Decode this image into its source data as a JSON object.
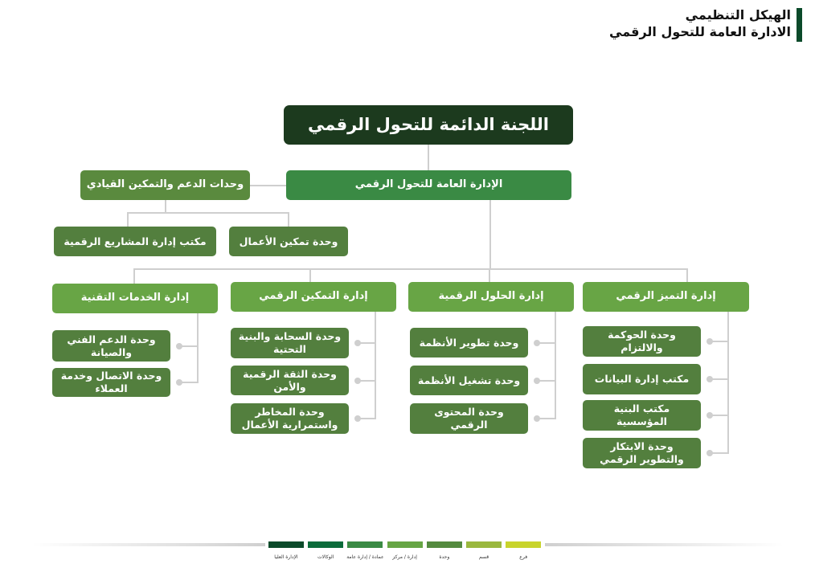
{
  "header": {
    "title_line1": "الهيكل التنظيمي",
    "title_line2": "الادارة العامة للتحول الرقمي"
  },
  "chart": {
    "top": "اللجنة الدائمة للتحول الرقمي",
    "general": "الإدارة العامة للتحول الرقمي",
    "support": {
      "label": "وحدات الدعم والتمكين القيادي",
      "units": [
        "مكتب إدارة المشاريع الرقمية",
        "وحدة تمكين الأعمال"
      ]
    },
    "departments": [
      {
        "label": "إدارة الخدمات التقنية",
        "units": [
          "وحدة الدعم الفني والصيانة",
          "وحدة الاتصال وخدمة العملاء"
        ]
      },
      {
        "label": "إدارة التمكين الرقمي",
        "units": [
          "وحدة السحابة والبنية التحتية",
          "وحدة الثقة الرقمية والأمن",
          "وحدة المخاطر واستمرارية الأعمال"
        ]
      },
      {
        "label": "إدارة الحلول الرقمية",
        "units": [
          "وحدة تطوير الأنظمة",
          "وحدة تشغيل الأنظمة",
          "وحدة المحتوى الرقمي"
        ]
      },
      {
        "label": "إدارة التميز الرقمي",
        "units": [
          "وحدة الحوكمة والالتزام",
          "مكتب إدارة البيانات",
          "مكتب البنية المؤسسية",
          "وحدة الابتكار والتطوير الرقمي"
        ]
      }
    ]
  },
  "legend": [
    {
      "label": "الإدارة العليا",
      "color": "#0b4a2a"
    },
    {
      "label": "الوكالات",
      "color": "#0a6b3a"
    },
    {
      "label": "عمادة / إدارة عامة",
      "color": "#3a8a44"
    },
    {
      "label": "إدارة / مركز",
      "color": "#66a544"
    },
    {
      "label": "وحدة",
      "color": "#548a3f"
    },
    {
      "label": "قسم",
      "color": "#9ab83e"
    },
    {
      "label": "فرع",
      "color": "#c8d42c"
    }
  ]
}
